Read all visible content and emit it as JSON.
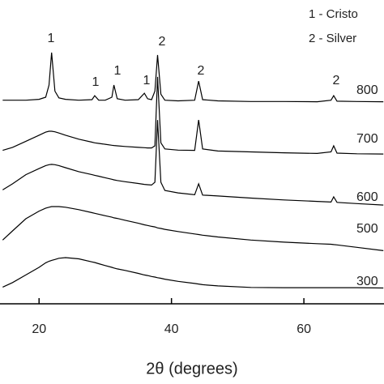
{
  "chart_data": {
    "type": "line",
    "x_label": "2θ (degrees)",
    "legend_texts": [
      "1 - Cristo",
      "2 - Silver"
    ],
    "annotations": [
      "1",
      "1",
      "1",
      "1",
      "2",
      "2",
      "2"
    ],
    "xlim": [
      14.1,
      72.1
    ],
    "ylim": [
      0,
      100
    ],
    "xticks": [
      20,
      40,
      60
    ],
    "x": [
      14.5,
      16,
      18,
      20,
      21,
      21.5,
      21.9,
      22.4,
      23,
      24,
      26,
      28,
      28.4,
      29,
      30,
      31,
      31.3,
      31.8,
      33,
      35,
      35.9,
      36.4,
      37,
      37.5,
      37.9,
      38.4,
      39,
      41,
      43.5,
      44.1,
      44.7,
      47,
      52,
      57,
      62,
      64.1,
      64.5,
      65,
      68,
      72
    ],
    "series": [
      {
        "name": "800",
        "color": "#000000",
        "values": [
          67,
          67,
          67,
          67.3,
          68,
          72,
          82.7,
          70,
          67.8,
          67.3,
          67,
          67.2,
          68.5,
          67,
          67,
          68,
          72,
          67.5,
          67,
          67.2,
          69.3,
          67.5,
          67.2,
          70,
          81.9,
          69,
          67,
          66.8,
          67,
          73.3,
          67.2,
          66.8,
          66.6,
          66.6,
          66.5,
          67,
          68.5,
          66.7,
          66.6,
          66.5
        ]
      },
      {
        "name": "700",
        "color": "#000000",
        "values": [
          50.5,
          51.5,
          53.5,
          55.5,
          56.5,
          56.8,
          56.8,
          56.6,
          56.2,
          55.5,
          54.2,
          53.2,
          53,
          52.8,
          52.5,
          52.2,
          52.1,
          52,
          51.8,
          51.5,
          51.4,
          51.3,
          51.3,
          52,
          74.7,
          53,
          51,
          50.6,
          50.5,
          60.5,
          51,
          50.3,
          50,
          49.7,
          49.5,
          50,
          52,
          49.6,
          49.4,
          49.3
        ]
      },
      {
        "name": "600",
        "color": "#000000",
        "values": [
          37.5,
          39.5,
          42.5,
          44.5,
          45.5,
          45.8,
          45.9,
          45.8,
          45.5,
          44.8,
          43.5,
          42.5,
          42.3,
          42,
          41.5,
          41,
          40.8,
          40.6,
          40.2,
          39.6,
          39.3,
          39.2,
          39.1,
          40,
          60.5,
          40,
          37.3,
          36.5,
          35.9,
          39.5,
          35.8,
          35.5,
          34.8,
          34.2,
          33.7,
          33.5,
          35.2,
          33.4,
          33,
          32.5
        ]
      },
      {
        "name": "500",
        "color": "#000000",
        "values": [
          21,
          24,
          28,
          30.5,
          31.5,
          31.8,
          32,
          32,
          32,
          31.8,
          31,
          30,
          29.8,
          29.5,
          29,
          28.5,
          28.3,
          28.1,
          27.5,
          26.5,
          26,
          25.8,
          25.5,
          25.3,
          25,
          24.8,
          24.5,
          23.8,
          23,
          22.8,
          22.6,
          22,
          21,
          20.3,
          19.8,
          19.6,
          19.5,
          19.4,
          18.6,
          17.5
        ]
      },
      {
        "name": "300",
        "color": "#000000",
        "values": [
          5.5,
          7,
          9.5,
          12,
          13.5,
          14,
          14.3,
          14.6,
          15,
          15.2,
          14.8,
          13.8,
          13.6,
          13.2,
          12.6,
          12,
          11.8,
          11.5,
          11,
          10,
          9.5,
          9.3,
          9,
          8.8,
          8.6,
          8.4,
          8.1,
          7.4,
          6.7,
          6.5,
          6.3,
          5.9,
          5.4,
          5.3,
          5.3,
          5.3,
          5.3,
          5.3,
          5.3,
          5.2
        ]
      }
    ]
  }
}
